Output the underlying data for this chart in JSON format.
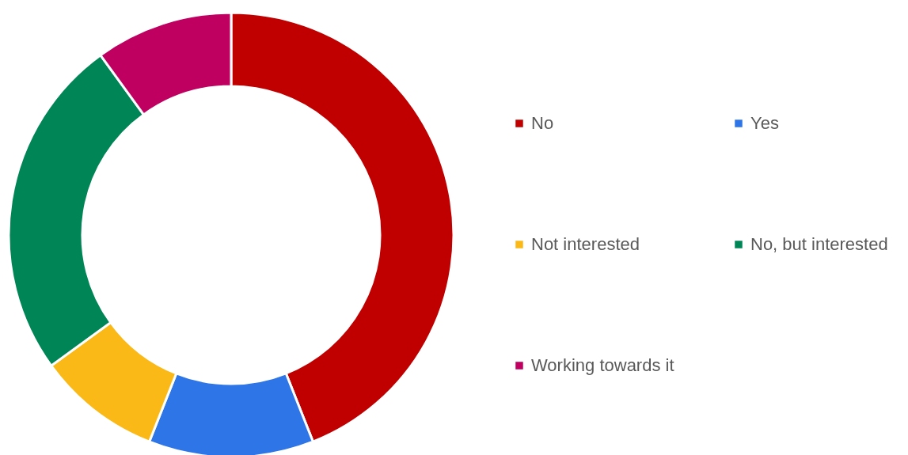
{
  "chart_data": {
    "type": "donut",
    "categories": [
      "No",
      "Yes",
      "Not interested",
      "No, but interested",
      "Working towards it"
    ],
    "values": [
      44,
      12,
      9,
      25,
      10
    ],
    "colors": [
      "#c00000",
      "#2e75e8",
      "#fbb917",
      "#008556",
      "#bf0060"
    ],
    "legend": "right"
  }
}
